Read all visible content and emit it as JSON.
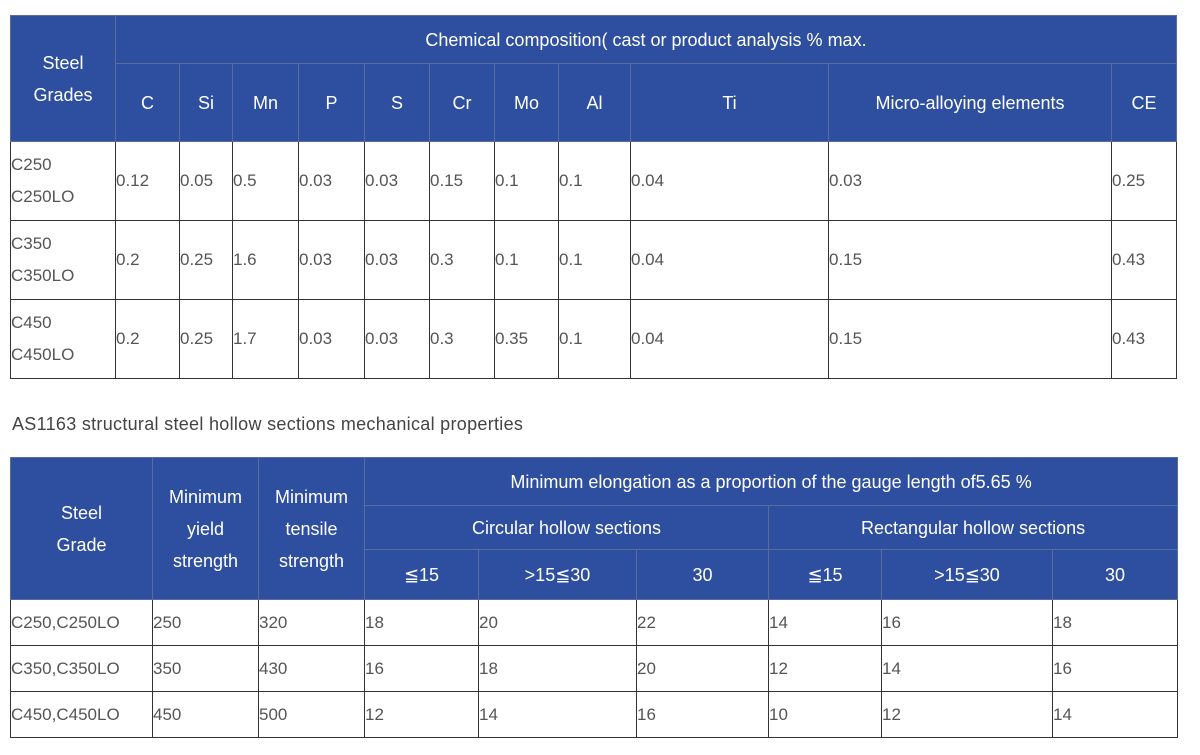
{
  "table1": {
    "header_grade": "Steel\nGrades",
    "header_grade_lines": [
      "Steel",
      "Grades"
    ],
    "header_group": "Chemical composition( cast or product analysis % max.",
    "columns": [
      "C",
      "Si",
      "Mn",
      "P",
      "S",
      "Cr",
      "Mo",
      "Al",
      "Ti",
      "Micro-alloying elements",
      "CE"
    ],
    "rows": [
      {
        "grades": [
          "C250",
          "C250LO"
        ],
        "values": [
          "0.12",
          "0.05",
          "0.5",
          "0.03",
          "0.03",
          "0.15",
          "0.1",
          "0.1",
          "0.04",
          "0.03",
          "0.25"
        ]
      },
      {
        "grades": [
          "C350",
          "C350LO"
        ],
        "values": [
          "0.2",
          "0.25",
          "1.6",
          "0.03",
          "0.03",
          "0.3",
          "0.1",
          "0.1",
          "0.04",
          "0.15",
          "0.43"
        ]
      },
      {
        "grades": [
          "C450",
          "C450LO"
        ],
        "values": [
          "0.2",
          "0.25",
          "1.7",
          "0.03",
          "0.03",
          "0.3",
          "0.35",
          "0.1",
          "0.04",
          "0.15",
          "0.43"
        ]
      }
    ]
  },
  "caption": "AS1163 structural steel hollow sections mechanical properties",
  "table2": {
    "header_grade_lines": [
      "Steel",
      "Grade"
    ],
    "header_yield_lines": [
      "Minimum",
      "yield",
      "strength"
    ],
    "header_tensile_lines": [
      "Minimum",
      "tensile",
      "strength"
    ],
    "header_group": "Minimum elongation as a proportion of the gauge length of5.65 %",
    "header_circular": "Circular hollow sections",
    "header_rectangular": "Rectangular hollow sections",
    "sub_columns": [
      "≦15",
      ">15≦30",
      "30",
      "≦15",
      ">15≦30",
      "30"
    ],
    "rows": [
      {
        "grade": "C250,C250LO",
        "values": [
          "250",
          "320",
          "18",
          "20",
          "22",
          "14",
          "16",
          "18"
        ]
      },
      {
        "grade": "C350,C350LO",
        "values": [
          "350",
          "430",
          "16",
          "18",
          "20",
          "12",
          "14",
          "16"
        ]
      },
      {
        "grade": "C450,C450LO",
        "values": [
          "450",
          "500",
          "12",
          "14",
          "16",
          "10",
          "12",
          "14"
        ]
      }
    ]
  }
}
